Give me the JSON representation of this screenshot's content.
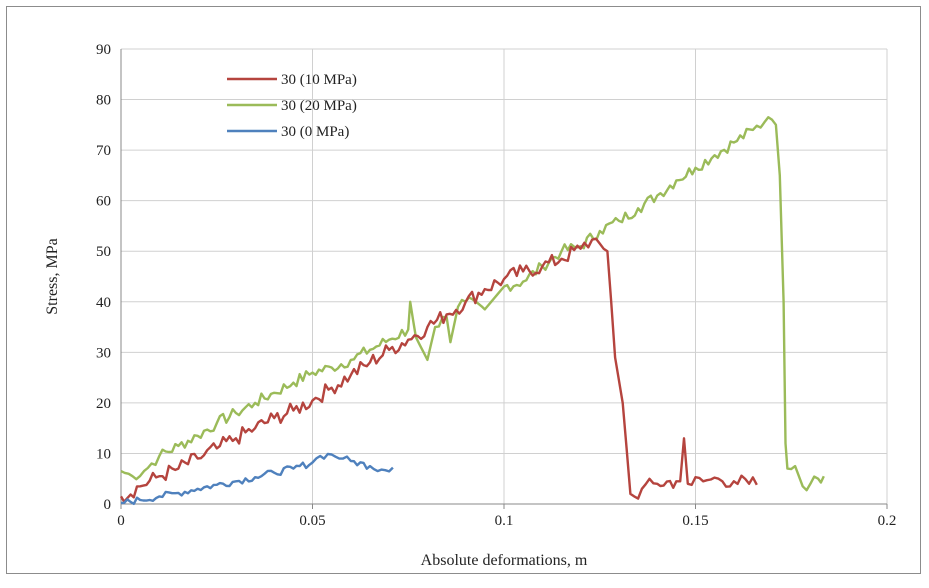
{
  "chart_data": {
    "type": "line",
    "xlabel": "Absolute deformations, m",
    "ylabel": "Stress, MPa",
    "xlim": [
      0,
      0.2
    ],
    "ylim": [
      0,
      90
    ],
    "x_ticks": [
      "0",
      "0.05",
      "0.1",
      "0.15",
      "0.2"
    ],
    "y_ticks": [
      "0",
      "10",
      "20",
      "30",
      "40",
      "50",
      "60",
      "70",
      "80",
      "90"
    ],
    "grid": true,
    "legend_position": "top-left",
    "series": [
      {
        "name": "30 (10 MPa)",
        "color": "#b5443e",
        "points": [
          [
            0,
            1.5
          ],
          [
            0.005,
            3.5
          ],
          [
            0.01,
            5.5
          ],
          [
            0.015,
            7
          ],
          [
            0.02,
            9
          ],
          [
            0.025,
            11
          ],
          [
            0.03,
            13
          ],
          [
            0.035,
            15
          ],
          [
            0.04,
            17
          ],
          [
            0.045,
            18.5
          ],
          [
            0.05,
            20.5
          ],
          [
            0.055,
            23
          ],
          [
            0.06,
            25.5
          ],
          [
            0.065,
            28
          ],
          [
            0.07,
            30.5
          ],
          [
            0.075,
            32.5
          ],
          [
            0.08,
            35
          ],
          [
            0.085,
            37.5
          ],
          [
            0.09,
            40
          ],
          [
            0.095,
            42.5
          ],
          [
            0.1,
            44.5
          ],
          [
            0.105,
            46
          ],
          [
            0.11,
            47
          ],
          [
            0.115,
            48.5
          ],
          [
            0.12,
            50.5
          ],
          [
            0.124,
            52.5
          ],
          [
            0.126,
            50.5
          ],
          [
            0.127,
            50
          ],
          [
            0.128,
            40
          ],
          [
            0.129,
            29
          ],
          [
            0.131,
            20
          ],
          [
            0.133,
            2
          ],
          [
            0.134,
            1.5
          ],
          [
            0.136,
            3
          ],
          [
            0.14,
            4
          ],
          [
            0.145,
            4.5
          ],
          [
            0.146,
            4.5
          ],
          [
            0.147,
            13
          ],
          [
            0.148,
            4
          ],
          [
            0.152,
            4.5
          ],
          [
            0.156,
            5
          ],
          [
            0.16,
            4.5
          ],
          [
            0.164,
            4
          ],
          [
            0.166,
            3.8
          ]
        ]
      },
      {
        "name": "30 (20 MPa)",
        "color": "#9bbb59",
        "points": [
          [
            0,
            6.5
          ],
          [
            0.003,
            5.5
          ],
          [
            0.006,
            6.5
          ],
          [
            0.01,
            9.5
          ],
          [
            0.015,
            11.5
          ],
          [
            0.02,
            13.5
          ],
          [
            0.025,
            16
          ],
          [
            0.03,
            18
          ],
          [
            0.035,
            20
          ],
          [
            0.04,
            22
          ],
          [
            0.045,
            24
          ],
          [
            0.05,
            26
          ],
          [
            0.055,
            27
          ],
          [
            0.06,
            28.5
          ],
          [
            0.065,
            30.5
          ],
          [
            0.07,
            32.5
          ],
          [
            0.075,
            34.5
          ],
          [
            0.0755,
            40
          ],
          [
            0.077,
            33
          ],
          [
            0.079,
            30
          ],
          [
            0.08,
            28.5
          ],
          [
            0.082,
            35
          ],
          [
            0.085,
            37
          ],
          [
            0.086,
            32
          ],
          [
            0.088,
            39
          ],
          [
            0.09,
            40
          ],
          [
            0.095,
            38.5
          ],
          [
            0.1,
            43
          ],
          [
            0.105,
            44
          ],
          [
            0.11,
            47
          ],
          [
            0.115,
            50
          ],
          [
            0.12,
            51
          ],
          [
            0.125,
            54
          ],
          [
            0.13,
            56
          ],
          [
            0.135,
            58.5
          ],
          [
            0.14,
            61
          ],
          [
            0.145,
            64
          ],
          [
            0.15,
            66.5
          ],
          [
            0.155,
            69
          ],
          [
            0.16,
            71.5
          ],
          [
            0.165,
            74
          ],
          [
            0.168,
            75.5
          ],
          [
            0.169,
            76.5
          ],
          [
            0.17,
            76
          ],
          [
            0.171,
            75
          ],
          [
            0.172,
            65
          ],
          [
            0.173,
            40
          ],
          [
            0.1735,
            12
          ],
          [
            0.174,
            7
          ],
          [
            0.176,
            7.5
          ],
          [
            0.178,
            3.5
          ],
          [
            0.18,
            4
          ],
          [
            0.182,
            5
          ],
          [
            0.1835,
            5.5
          ]
        ]
      },
      {
        "name": "30 (0 MPa)",
        "color": "#4f81bd",
        "points": [
          [
            0,
            0.2
          ],
          [
            0.005,
            0.8
          ],
          [
            0.01,
            1.5
          ],
          [
            0.015,
            2.2
          ],
          [
            0.02,
            3
          ],
          [
            0.025,
            3.8
          ],
          [
            0.03,
            4.5
          ],
          [
            0.035,
            5.3
          ],
          [
            0.04,
            6.2
          ],
          [
            0.045,
            7
          ],
          [
            0.05,
            8.2
          ],
          [
            0.052,
            9.5
          ],
          [
            0.055,
            9.8
          ],
          [
            0.058,
            9
          ],
          [
            0.06,
            8.5
          ],
          [
            0.065,
            7.5
          ],
          [
            0.068,
            6.8
          ],
          [
            0.071,
            7.2
          ]
        ]
      }
    ]
  }
}
